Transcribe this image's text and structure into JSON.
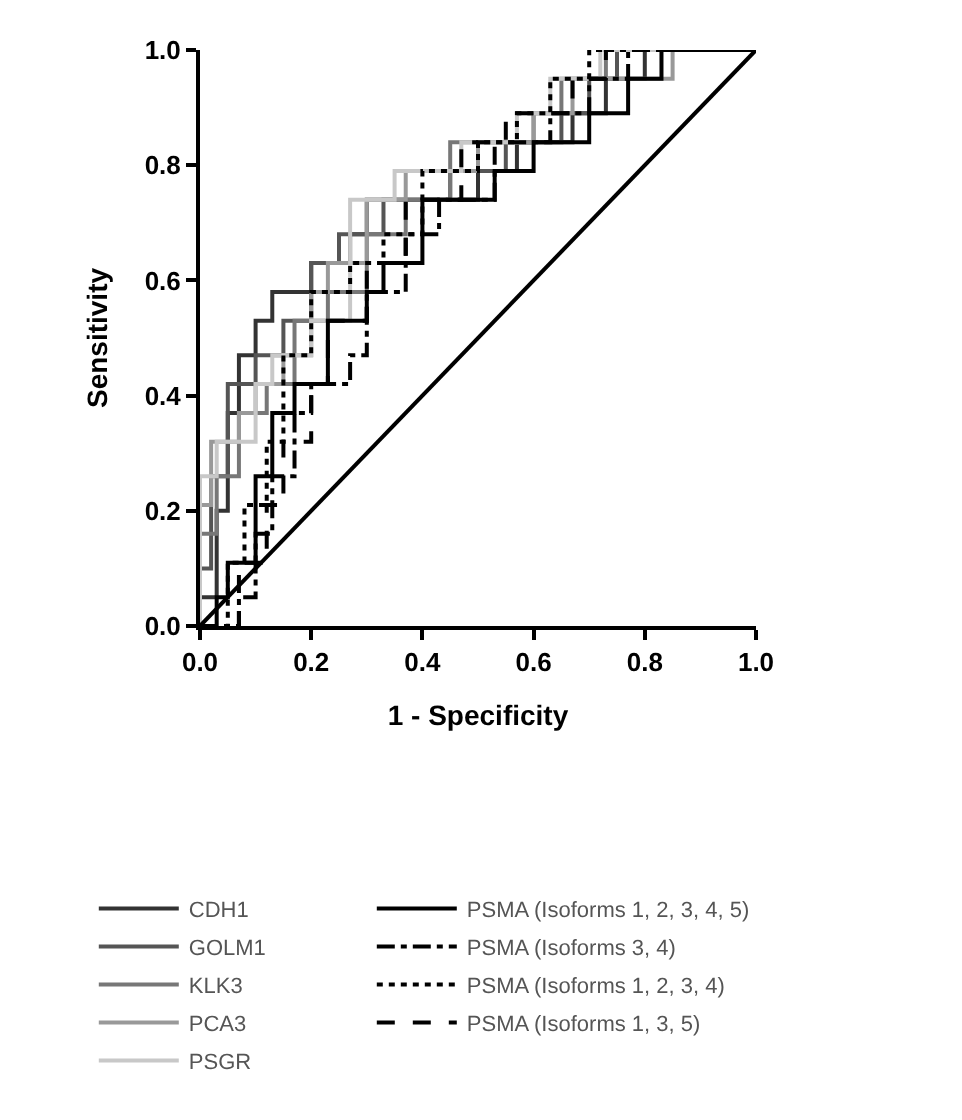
{
  "chart_data": {
    "type": "line",
    "xlabel": "1 - Specificity",
    "ylabel": "Sensitivity",
    "xlim": [
      0,
      1
    ],
    "ylim": [
      0,
      1
    ],
    "xticks": [
      {
        "value": 0,
        "label": "0.0"
      },
      {
        "value": 0.2,
        "label": "0.2"
      },
      {
        "value": 0.4,
        "label": "0.4"
      },
      {
        "value": 0.6,
        "label": "0.6"
      },
      {
        "value": 0.8,
        "label": "0.8"
      },
      {
        "value": 1,
        "label": "1.0"
      }
    ],
    "yticks": [
      {
        "value": 0,
        "label": "0.0"
      },
      {
        "value": 0.2,
        "label": "0.2"
      },
      {
        "value": 0.4,
        "label": "0.4"
      },
      {
        "value": 0.6,
        "label": "0.6"
      },
      {
        "value": 0.8,
        "label": "0.8"
      },
      {
        "value": 1,
        "label": "1.0"
      }
    ],
    "legend": "bottom",
    "marker": "none",
    "series": [
      {
        "name": "CDH1",
        "color": "#333333",
        "line_style": "solid",
        "x": [
          0,
          0,
          0.03,
          0.03,
          0.05,
          0.05,
          0.07,
          0.07,
          0.1,
          0.1,
          0.13,
          0.13,
          0.2,
          0.2,
          0.27,
          0.27,
          0.3,
          0.3,
          0.5,
          0.5,
          0.57,
          0.57,
          0.67,
          0.67,
          0.73,
          0.73,
          0.8,
          0.8,
          1
        ],
        "values": [
          0,
          0.05,
          0.05,
          0.2,
          0.2,
          0.37,
          0.37,
          0.47,
          0.47,
          0.53,
          0.53,
          0.58,
          0.58,
          0.63,
          0.63,
          0.68,
          0.68,
          0.74,
          0.74,
          0.79,
          0.79,
          0.84,
          0.84,
          0.89,
          0.89,
          0.95,
          0.95,
          1,
          1
        ]
      },
      {
        "name": "GOLM1",
        "color": "#555555",
        "line_style": "solid",
        "x": [
          0,
          0,
          0.02,
          0.02,
          0.05,
          0.05,
          0.1,
          0.1,
          0.15,
          0.15,
          0.2,
          0.2,
          0.25,
          0.25,
          0.33,
          0.33,
          0.45,
          0.45,
          0.55,
          0.55,
          0.65,
          0.65,
          0.7,
          0.7,
          0.75,
          0.75,
          1
        ],
        "values": [
          0,
          0.1,
          0.1,
          0.26,
          0.26,
          0.42,
          0.42,
          0.47,
          0.47,
          0.53,
          0.53,
          0.63,
          0.63,
          0.68,
          0.68,
          0.74,
          0.74,
          0.79,
          0.79,
          0.84,
          0.84,
          0.89,
          0.89,
          0.95,
          0.95,
          1,
          1
        ]
      },
      {
        "name": "KLK3",
        "color": "#777777",
        "line_style": "solid",
        "x": [
          0,
          0,
          0.03,
          0.03,
          0.07,
          0.07,
          0.12,
          0.12,
          0.17,
          0.17,
          0.23,
          0.23,
          0.3,
          0.3,
          0.37,
          0.37,
          0.45,
          0.45,
          0.6,
          0.6,
          0.65,
          0.65,
          0.73,
          0.73,
          1
        ],
        "values": [
          0,
          0.16,
          0.16,
          0.26,
          0.26,
          0.37,
          0.37,
          0.42,
          0.42,
          0.53,
          0.53,
          0.58,
          0.58,
          0.68,
          0.68,
          0.74,
          0.74,
          0.84,
          0.84,
          0.89,
          0.89,
          0.95,
          0.95,
          1,
          1
        ]
      },
      {
        "name": "PCA3",
        "color": "#999999",
        "line_style": "solid",
        "x": [
          0,
          0,
          0.02,
          0.02,
          0.07,
          0.07,
          0.1,
          0.1,
          0.15,
          0.15,
          0.2,
          0.2,
          0.23,
          0.23,
          0.3,
          0.3,
          0.37,
          0.37,
          0.5,
          0.5,
          0.6,
          0.6,
          0.67,
          0.67,
          0.85,
          0.85,
          1
        ],
        "values": [
          0,
          0.21,
          0.21,
          0.32,
          0.32,
          0.37,
          0.37,
          0.42,
          0.42,
          0.47,
          0.47,
          0.58,
          0.58,
          0.63,
          0.63,
          0.74,
          0.74,
          0.79,
          0.79,
          0.84,
          0.84,
          0.89,
          0.89,
          0.95,
          0.95,
          1,
          1
        ]
      },
      {
        "name": "PSGR",
        "color": "#c8c8c8",
        "line_style": "solid",
        "x": [
          0,
          0,
          0.03,
          0.03,
          0.1,
          0.1,
          0.13,
          0.13,
          0.2,
          0.2,
          0.27,
          0.27,
          0.35,
          0.35,
          0.47,
          0.47,
          0.57,
          0.57,
          0.63,
          0.63,
          0.72,
          0.72,
          1
        ],
        "values": [
          0,
          0.26,
          0.26,
          0.32,
          0.32,
          0.42,
          0.42,
          0.47,
          0.47,
          0.53,
          0.53,
          0.74,
          0.74,
          0.79,
          0.79,
          0.84,
          0.84,
          0.89,
          0.89,
          0.95,
          0.95,
          1,
          1
        ]
      },
      {
        "name": "PSMA (Isoforms 1, 2, 3, 4, 5)",
        "color": "#000000",
        "line_style": "solid",
        "x": [
          0,
          0.03,
          0.03,
          0.05,
          0.05,
          0.1,
          0.1,
          0.13,
          0.13,
          0.17,
          0.17,
          0.23,
          0.23,
          0.3,
          0.3,
          0.33,
          0.33,
          0.4,
          0.4,
          0.53,
          0.53,
          0.6,
          0.6,
          0.7,
          0.7,
          0.77,
          0.77,
          0.83,
          0.83,
          1
        ],
        "values": [
          0,
          0,
          0.05,
          0.05,
          0.11,
          0.11,
          0.26,
          0.26,
          0.37,
          0.37,
          0.42,
          0.42,
          0.53,
          0.53,
          0.58,
          0.58,
          0.63,
          0.63,
          0.74,
          0.74,
          0.79,
          0.79,
          0.84,
          0.84,
          0.89,
          0.89,
          0.95,
          0.95,
          1,
          1
        ]
      },
      {
        "name": "PSMA (Isoforms 3, 4)",
        "color": "#000000",
        "line_style": "dashdot",
        "x": [
          0,
          0.07,
          0.07,
          0.1,
          0.1,
          0.13,
          0.13,
          0.17,
          0.17,
          0.2,
          0.2,
          0.27,
          0.27,
          0.3,
          0.3,
          0.37,
          0.37,
          0.43,
          0.43,
          0.53,
          0.53,
          0.63,
          0.63,
          0.7,
          0.7,
          0.77,
          0.77,
          1
        ],
        "values": [
          0,
          0,
          0.05,
          0.05,
          0.16,
          0.16,
          0.26,
          0.26,
          0.37,
          0.37,
          0.42,
          0.42,
          0.47,
          0.47,
          0.58,
          0.58,
          0.68,
          0.68,
          0.74,
          0.74,
          0.84,
          0.84,
          0.89,
          0.89,
          0.95,
          0.95,
          1,
          1
        ]
      },
      {
        "name": "PSMA (Isoforms 1, 2, 3, 4)",
        "color": "#000000",
        "line_style": "dotted",
        "x": [
          0,
          0.05,
          0.05,
          0.08,
          0.08,
          0.12,
          0.12,
          0.15,
          0.15,
          0.2,
          0.2,
          0.27,
          0.27,
          0.33,
          0.33,
          0.4,
          0.4,
          0.5,
          0.5,
          0.57,
          0.57,
          0.63,
          0.63,
          0.7,
          0.7,
          1
        ],
        "values": [
          0,
          0,
          0.11,
          0.11,
          0.21,
          0.21,
          0.32,
          0.32,
          0.47,
          0.47,
          0.58,
          0.58,
          0.63,
          0.63,
          0.68,
          0.68,
          0.79,
          0.79,
          0.84,
          0.84,
          0.89,
          0.89,
          0.95,
          0.95,
          1,
          1
        ]
      },
      {
        "name": "PSMA (Isoforms 1, 3, 5)",
        "color": "#000000",
        "line_style": "dashed",
        "x": [
          0,
          0.07,
          0.07,
          0.12,
          0.12,
          0.15,
          0.15,
          0.2,
          0.2,
          0.23,
          0.23,
          0.3,
          0.3,
          0.37,
          0.37,
          0.47,
          0.47,
          0.55,
          0.55,
          0.67,
          0.67,
          0.73,
          0.73,
          1
        ],
        "values": [
          0,
          0,
          0.11,
          0.11,
          0.21,
          0.21,
          0.32,
          0.32,
          0.42,
          0.42,
          0.53,
          0.53,
          0.63,
          0.63,
          0.74,
          0.74,
          0.84,
          0.84,
          0.89,
          0.89,
          0.95,
          0.95,
          1,
          1
        ]
      },
      {
        "color": "#000000",
        "line_style": "solid",
        "x": [
          0,
          1
        ],
        "values": [
          0,
          1
        ]
      }
    ]
  }
}
